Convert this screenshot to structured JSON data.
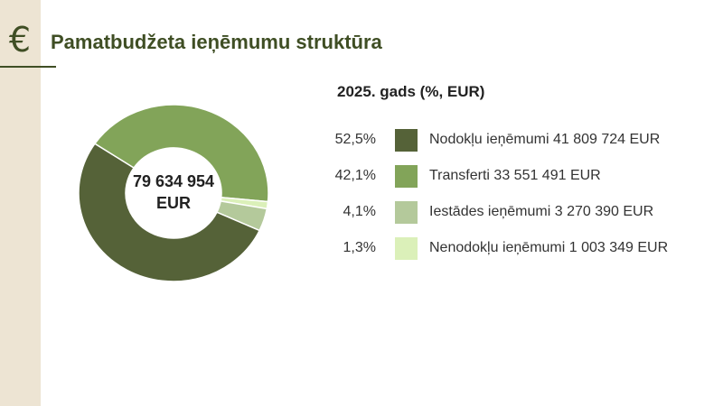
{
  "header": {
    "title": "Pamatbudžeta ieņēmumu struktūra",
    "icon": "euro-icon",
    "icon_glyph": "€"
  },
  "colors": {
    "accent": "#3f4e24",
    "sidebar": "#ede4d3"
  },
  "chart_data": {
    "type": "pie",
    "subtitle": "2025. gads (%, EUR)",
    "center_label_line1": "79 634 954",
    "center_label_line2": "EUR",
    "legend_position": "right",
    "slices": [
      {
        "label": "Nodokļu ieņēmumi 41 809 724 EUR",
        "percent_label": "52,5%",
        "percent": 52.5,
        "amount": 41809724,
        "color": "#556238"
      },
      {
        "label": "Transferti 33 551 491 EUR",
        "percent_label": "42,1%",
        "percent": 42.1,
        "amount": 33551491,
        "color": "#82a459"
      },
      {
        "label": "Iestādes ieņēmumi 3 270 390 EUR",
        "percent_label": "4,1%",
        "percent": 4.1,
        "amount": 3270390,
        "color": "#b4c99b"
      },
      {
        "label": "Nenodokļu ieņēmumi 1 003 349 EUR",
        "percent_label": "1,3%",
        "percent": 1.3,
        "amount": 1003349,
        "color": "#dbf0b9"
      }
    ]
  }
}
